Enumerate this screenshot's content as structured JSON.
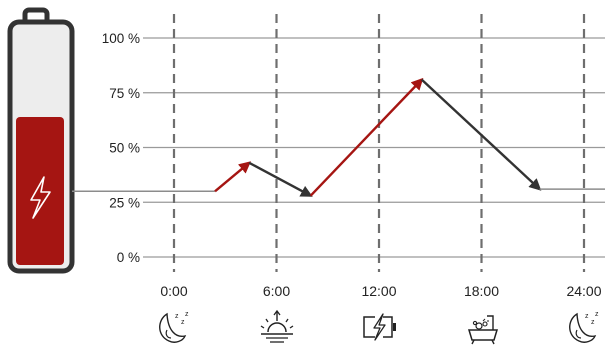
{
  "chart_data": {
    "type": "line",
    "title": "",
    "xlabel": "",
    "ylabel": "",
    "ylim": [
      0,
      100
    ],
    "y_ticks": [
      "0 %",
      "25 %",
      "50 %",
      "75 %",
      "100 %"
    ],
    "y_tick_values": [
      0,
      25,
      50,
      75,
      100
    ],
    "x_ticks": [
      "0:00",
      "6:00",
      "12:00",
      "18:00",
      "24:00"
    ],
    "x_tick_values": [
      0,
      6,
      12,
      18,
      24
    ],
    "grid": true,
    "battery_level": 30,
    "points": [
      {
        "x": 2.4,
        "y": 30
      },
      {
        "x": 4.4,
        "y": 43
      },
      {
        "x": 8.0,
        "y": 28
      },
      {
        "x": 14.5,
        "y": 81
      },
      {
        "x": 21.4,
        "y": 31
      }
    ],
    "segments": [
      {
        "from": 0,
        "to": 1,
        "trend": "charging"
      },
      {
        "from": 1,
        "to": 2,
        "trend": "discharging"
      },
      {
        "from": 2,
        "to": 3,
        "trend": "charging"
      },
      {
        "from": 3,
        "to": 4,
        "trend": "discharging"
      }
    ],
    "icons": [
      "sleep-moon-icon",
      "sunrise-icon",
      "charging-battery-icon",
      "bathtub-icon",
      "sleep-moon-icon"
    ],
    "colors": {
      "charging": "#a51512",
      "discharging": "#333333",
      "battery_fill": "#a51512",
      "gridline": "#9a9a9a"
    }
  }
}
